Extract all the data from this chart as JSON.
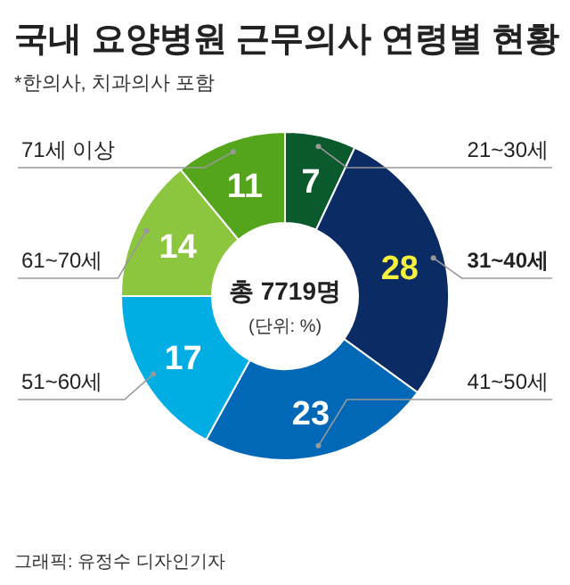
{
  "chart_data": {
    "type": "donut",
    "title": "국내 요양병원 근무의사 연령별 현황",
    "subtitle": "*한의사, 치과의사 포함",
    "categories": [
      "21~30세",
      "31~40세",
      "41~50세",
      "51~60세",
      "61~70세",
      "71세 이상"
    ],
    "values": [
      7,
      28,
      23,
      17,
      14,
      11
    ],
    "colors": [
      "#0b5a2e",
      "#0a2b63",
      "#0068b7",
      "#00aee3",
      "#8cc63f",
      "#55a51c"
    ],
    "data_labels": true,
    "annotations": [
      "총 7719명",
      "(단위: %)",
      "그래픽: 유정수 디자인기자"
    ]
  }
}
